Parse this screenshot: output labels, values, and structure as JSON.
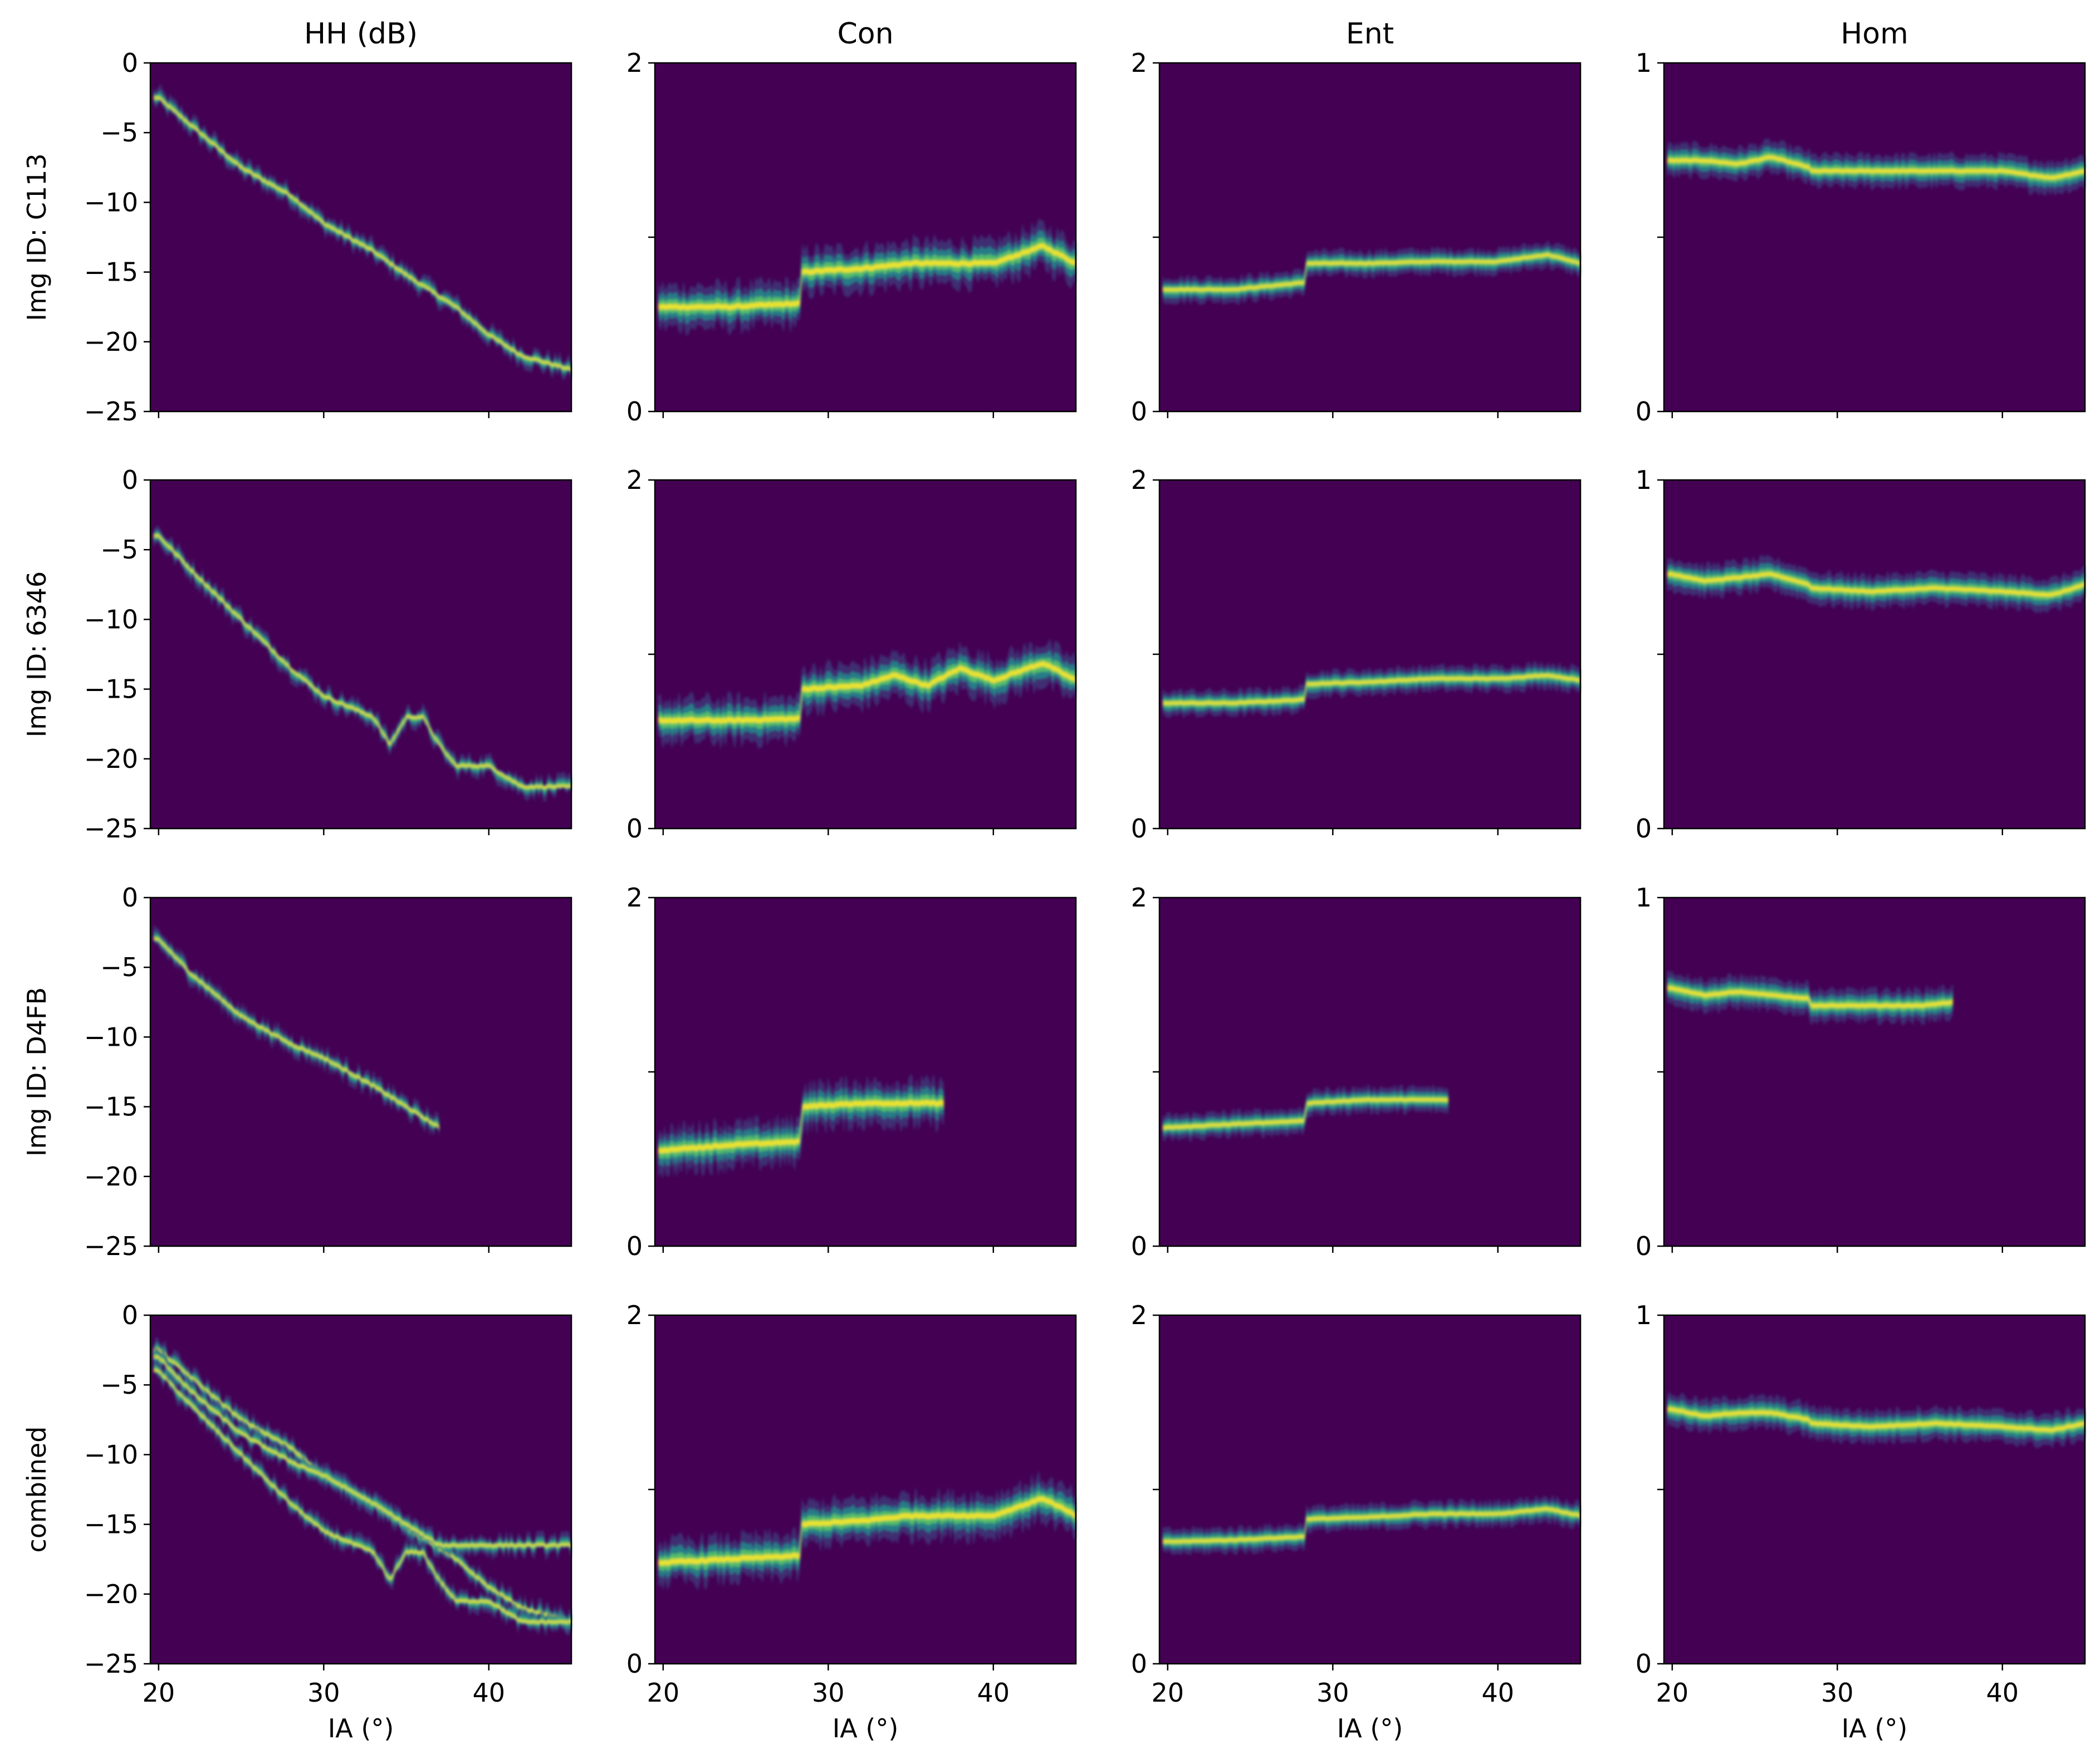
{
  "figure": {
    "column_titles": [
      "HH (dB)",
      "Con",
      "Ent",
      "Hom"
    ],
    "row_labels": [
      "Img ID: C113",
      "Img ID: 6346",
      "Img ID: D4FB",
      "combined"
    ],
    "x_label": "IA (°)",
    "x_ticks": [
      "20",
      "30",
      "40"
    ],
    "y_ticks": {
      "hh": [
        "0",
        "−5",
        "−10",
        "−15",
        "−20",
        "−25"
      ],
      "con": [
        "2",
        "0"
      ],
      "ent": [
        "2",
        "0"
      ],
      "hom": [
        "1",
        "0"
      ]
    }
  },
  "chart_data": {
    "type": "heatmap",
    "colormap": "viridis",
    "background_color": "#440154",
    "band_colors": [
      "#3b528b",
      "#21908d",
      "#5dc963",
      "#fde725"
    ],
    "xlim": [
      19.5,
      45
    ],
    "x_ticks": [
      20,
      30,
      40
    ],
    "ylims": {
      "hh": [
        -25,
        0
      ],
      "con": [
        0,
        2
      ],
      "ent": [
        0,
        2
      ],
      "hom": [
        0,
        1
      ]
    },
    "y_ticks": {
      "hh": [
        0,
        -5,
        -10,
        -15,
        -20,
        -25
      ],
      "con": [
        0,
        1,
        2
      ],
      "ent": [
        0,
        1,
        2
      ],
      "hom": [
        0,
        0.5,
        1
      ]
    },
    "panels": [
      {
        "row": "Img ID: C113",
        "col": "HH (dB)",
        "x_range": [
          19.7,
          45
        ],
        "bands": [
          {
            "x": [
              20,
              22,
              25,
              28,
              30,
              33,
              35,
              38,
              40,
              42,
              45
            ],
            "y": [
              -2.5,
              -4.5,
              -7.5,
              -9.5,
              -11.5,
              -13.5,
              -15.2,
              -17.5,
              -19.5,
              -21,
              -22
            ]
          }
        ]
      },
      {
        "row": "Img ID: C113",
        "col": "Con",
        "x_range": [
          19.7,
          45
        ],
        "bands": [
          {
            "x": [
              20,
              24,
              28.3,
              28.4,
              32,
              35,
              38,
              40,
              43,
              45
            ],
            "y": [
              0.6,
              0.6,
              0.62,
              0.8,
              0.82,
              0.85,
              0.85,
              0.85,
              0.95,
              0.85
            ]
          }
        ]
      },
      {
        "row": "Img ID: C113",
        "col": "Ent",
        "x_range": [
          19.7,
          45
        ],
        "bands": [
          {
            "x": [
              20,
              24,
              28.3,
              28.4,
              32,
              36,
              40,
              43,
              45
            ],
            "y": [
              0.7,
              0.7,
              0.74,
              0.85,
              0.85,
              0.86,
              0.86,
              0.9,
              0.85
            ]
          }
        ]
      },
      {
        "row": "Img ID: C113",
        "col": "Hom",
        "x_range": [
          19.7,
          45
        ],
        "bands": [
          {
            "x": [
              20,
              22,
              24,
              26,
              28.3,
              28.4,
              32,
              36,
              40,
              43,
              45
            ],
            "y": [
              0.72,
              0.72,
              0.71,
              0.73,
              0.7,
              0.69,
              0.69,
              0.69,
              0.69,
              0.67,
              0.69
            ]
          }
        ]
      },
      {
        "row": "Img ID: 6346",
        "col": "HH (dB)",
        "x_range": [
          19.7,
          45
        ],
        "bands": [
          {
            "x": [
              20,
              22,
              25,
              28,
              30,
              33,
              34,
              35,
              36,
              37,
              38,
              40,
              42,
              45
            ],
            "y": [
              -4,
              -6.5,
              -10,
              -13.5,
              -15.5,
              -17,
              -19,
              -17,
              -17,
              -19,
              -20.5,
              -20.5,
              -22,
              -22
            ]
          }
        ]
      },
      {
        "row": "Img ID: 6346",
        "col": "Con",
        "x_range": [
          19.7,
          45
        ],
        "bands": [
          {
            "x": [
              20,
              24,
              28.3,
              28.4,
              32,
              34,
              36,
              38,
              40,
              43,
              45
            ],
            "y": [
              0.62,
              0.62,
              0.63,
              0.8,
              0.82,
              0.88,
              0.82,
              0.92,
              0.85,
              0.95,
              0.85
            ]
          }
        ]
      },
      {
        "row": "Img ID: 6346",
        "col": "Ent",
        "x_range": [
          19.7,
          45
        ],
        "bands": [
          {
            "x": [
              20,
              24,
              28.3,
              28.4,
              32,
              36,
              40,
              43,
              45
            ],
            "y": [
              0.72,
              0.72,
              0.74,
              0.83,
              0.84,
              0.86,
              0.86,
              0.88,
              0.85
            ]
          }
        ]
      },
      {
        "row": "Img ID: 6346",
        "col": "Hom",
        "x_range": [
          19.7,
          45
        ],
        "bands": [
          {
            "x": [
              20,
              22,
              24,
              26,
              28.3,
              28.4,
              32,
              36,
              40,
              43,
              45
            ],
            "y": [
              0.73,
              0.71,
              0.72,
              0.73,
              0.7,
              0.69,
              0.68,
              0.69,
              0.68,
              0.67,
              0.7
            ]
          }
        ]
      },
      {
        "row": "Img ID: D4FB",
        "col": "HH (dB)",
        "x_range": [
          19.7,
          37
        ],
        "bands": [
          {
            "x": [
              20,
              22,
              25,
              28,
              30,
              33,
              35,
              37
            ],
            "y": [
              -3,
              -5.5,
              -8.5,
              -10.5,
              -11.5,
              -13.5,
              -15,
              -16.5
            ]
          }
        ]
      },
      {
        "row": "Img ID: D4FB",
        "col": "Con",
        "x_range": [
          19.7,
          37
        ],
        "bands": [
          {
            "x": [
              20,
              24,
              28.3,
              28.4,
              32,
              35,
              37
            ],
            "y": [
              0.55,
              0.58,
              0.6,
              0.8,
              0.82,
              0.82,
              0.82
            ]
          }
        ]
      },
      {
        "row": "Img ID: D4FB",
        "col": "Ent",
        "x_range": [
          19.7,
          37
        ],
        "bands": [
          {
            "x": [
              20,
              24,
              28.3,
              28.4,
              32,
              35,
              37
            ],
            "y": [
              0.68,
              0.7,
              0.72,
              0.82,
              0.84,
              0.84,
              0.84
            ]
          }
        ]
      },
      {
        "row": "Img ID: D4FB",
        "col": "Hom",
        "x_range": [
          19.7,
          37
        ],
        "bands": [
          {
            "x": [
              20,
              22,
              24,
              26,
              28.3,
              28.4,
              32,
              35,
              37
            ],
            "y": [
              0.74,
              0.72,
              0.73,
              0.72,
              0.71,
              0.69,
              0.69,
              0.69,
              0.7
            ]
          }
        ]
      },
      {
        "row": "combined",
        "col": "HH (dB)",
        "x_range": [
          19.7,
          45
        ],
        "bands": [
          {
            "x": [
              20,
              22,
              25,
              28,
              30,
              33,
              35,
              38,
              40,
              42,
              45
            ],
            "y": [
              -2.5,
              -4.5,
              -7.5,
              -9.5,
              -11.5,
              -13.5,
              -15.2,
              -17.5,
              -19.5,
              -21,
              -22
            ]
          },
          {
            "x": [
              20,
              22,
              25,
              28,
              30,
              33,
              34,
              35,
              36,
              37,
              38,
              40,
              42,
              45
            ],
            "y": [
              -4,
              -6.5,
              -10,
              -13.5,
              -15.5,
              -17,
              -19,
              -17,
              -17,
              -19,
              -20.5,
              -20.5,
              -22,
              -22
            ]
          },
          {
            "x": [
              20,
              22,
              25,
              28,
              30,
              33,
              35,
              37
            ],
            "y": [
              -3,
              -5.5,
              -8.5,
              -10.5,
              -11.5,
              -13.5,
              -15,
              -16.5
            ]
          }
        ]
      },
      {
        "row": "combined",
        "col": "Con",
        "x_range": [
          19.7,
          45
        ],
        "bands": [
          {
            "x": [
              20,
              24,
              28.3,
              28.4,
              32,
              35,
              38,
              40,
              43,
              45
            ],
            "y": [
              0.58,
              0.6,
              0.62,
              0.8,
              0.82,
              0.85,
              0.85,
              0.85,
              0.95,
              0.85
            ]
          }
        ]
      },
      {
        "row": "combined",
        "col": "Ent",
        "x_range": [
          19.7,
          45
        ],
        "bands": [
          {
            "x": [
              20,
              24,
              28.3,
              28.4,
              32,
              36,
              40,
              43,
              45
            ],
            "y": [
              0.7,
              0.71,
              0.73,
              0.83,
              0.84,
              0.86,
              0.86,
              0.89,
              0.85
            ]
          }
        ]
      },
      {
        "row": "combined",
        "col": "Hom",
        "x_range": [
          19.7,
          45
        ],
        "bands": [
          {
            "x": [
              20,
              22,
              24,
              26,
              28.3,
              28.4,
              32,
              36,
              40,
              43,
              45
            ],
            "y": [
              0.73,
              0.71,
              0.72,
              0.72,
              0.7,
              0.69,
              0.68,
              0.69,
              0.68,
              0.67,
              0.69
            ]
          }
        ]
      }
    ]
  }
}
